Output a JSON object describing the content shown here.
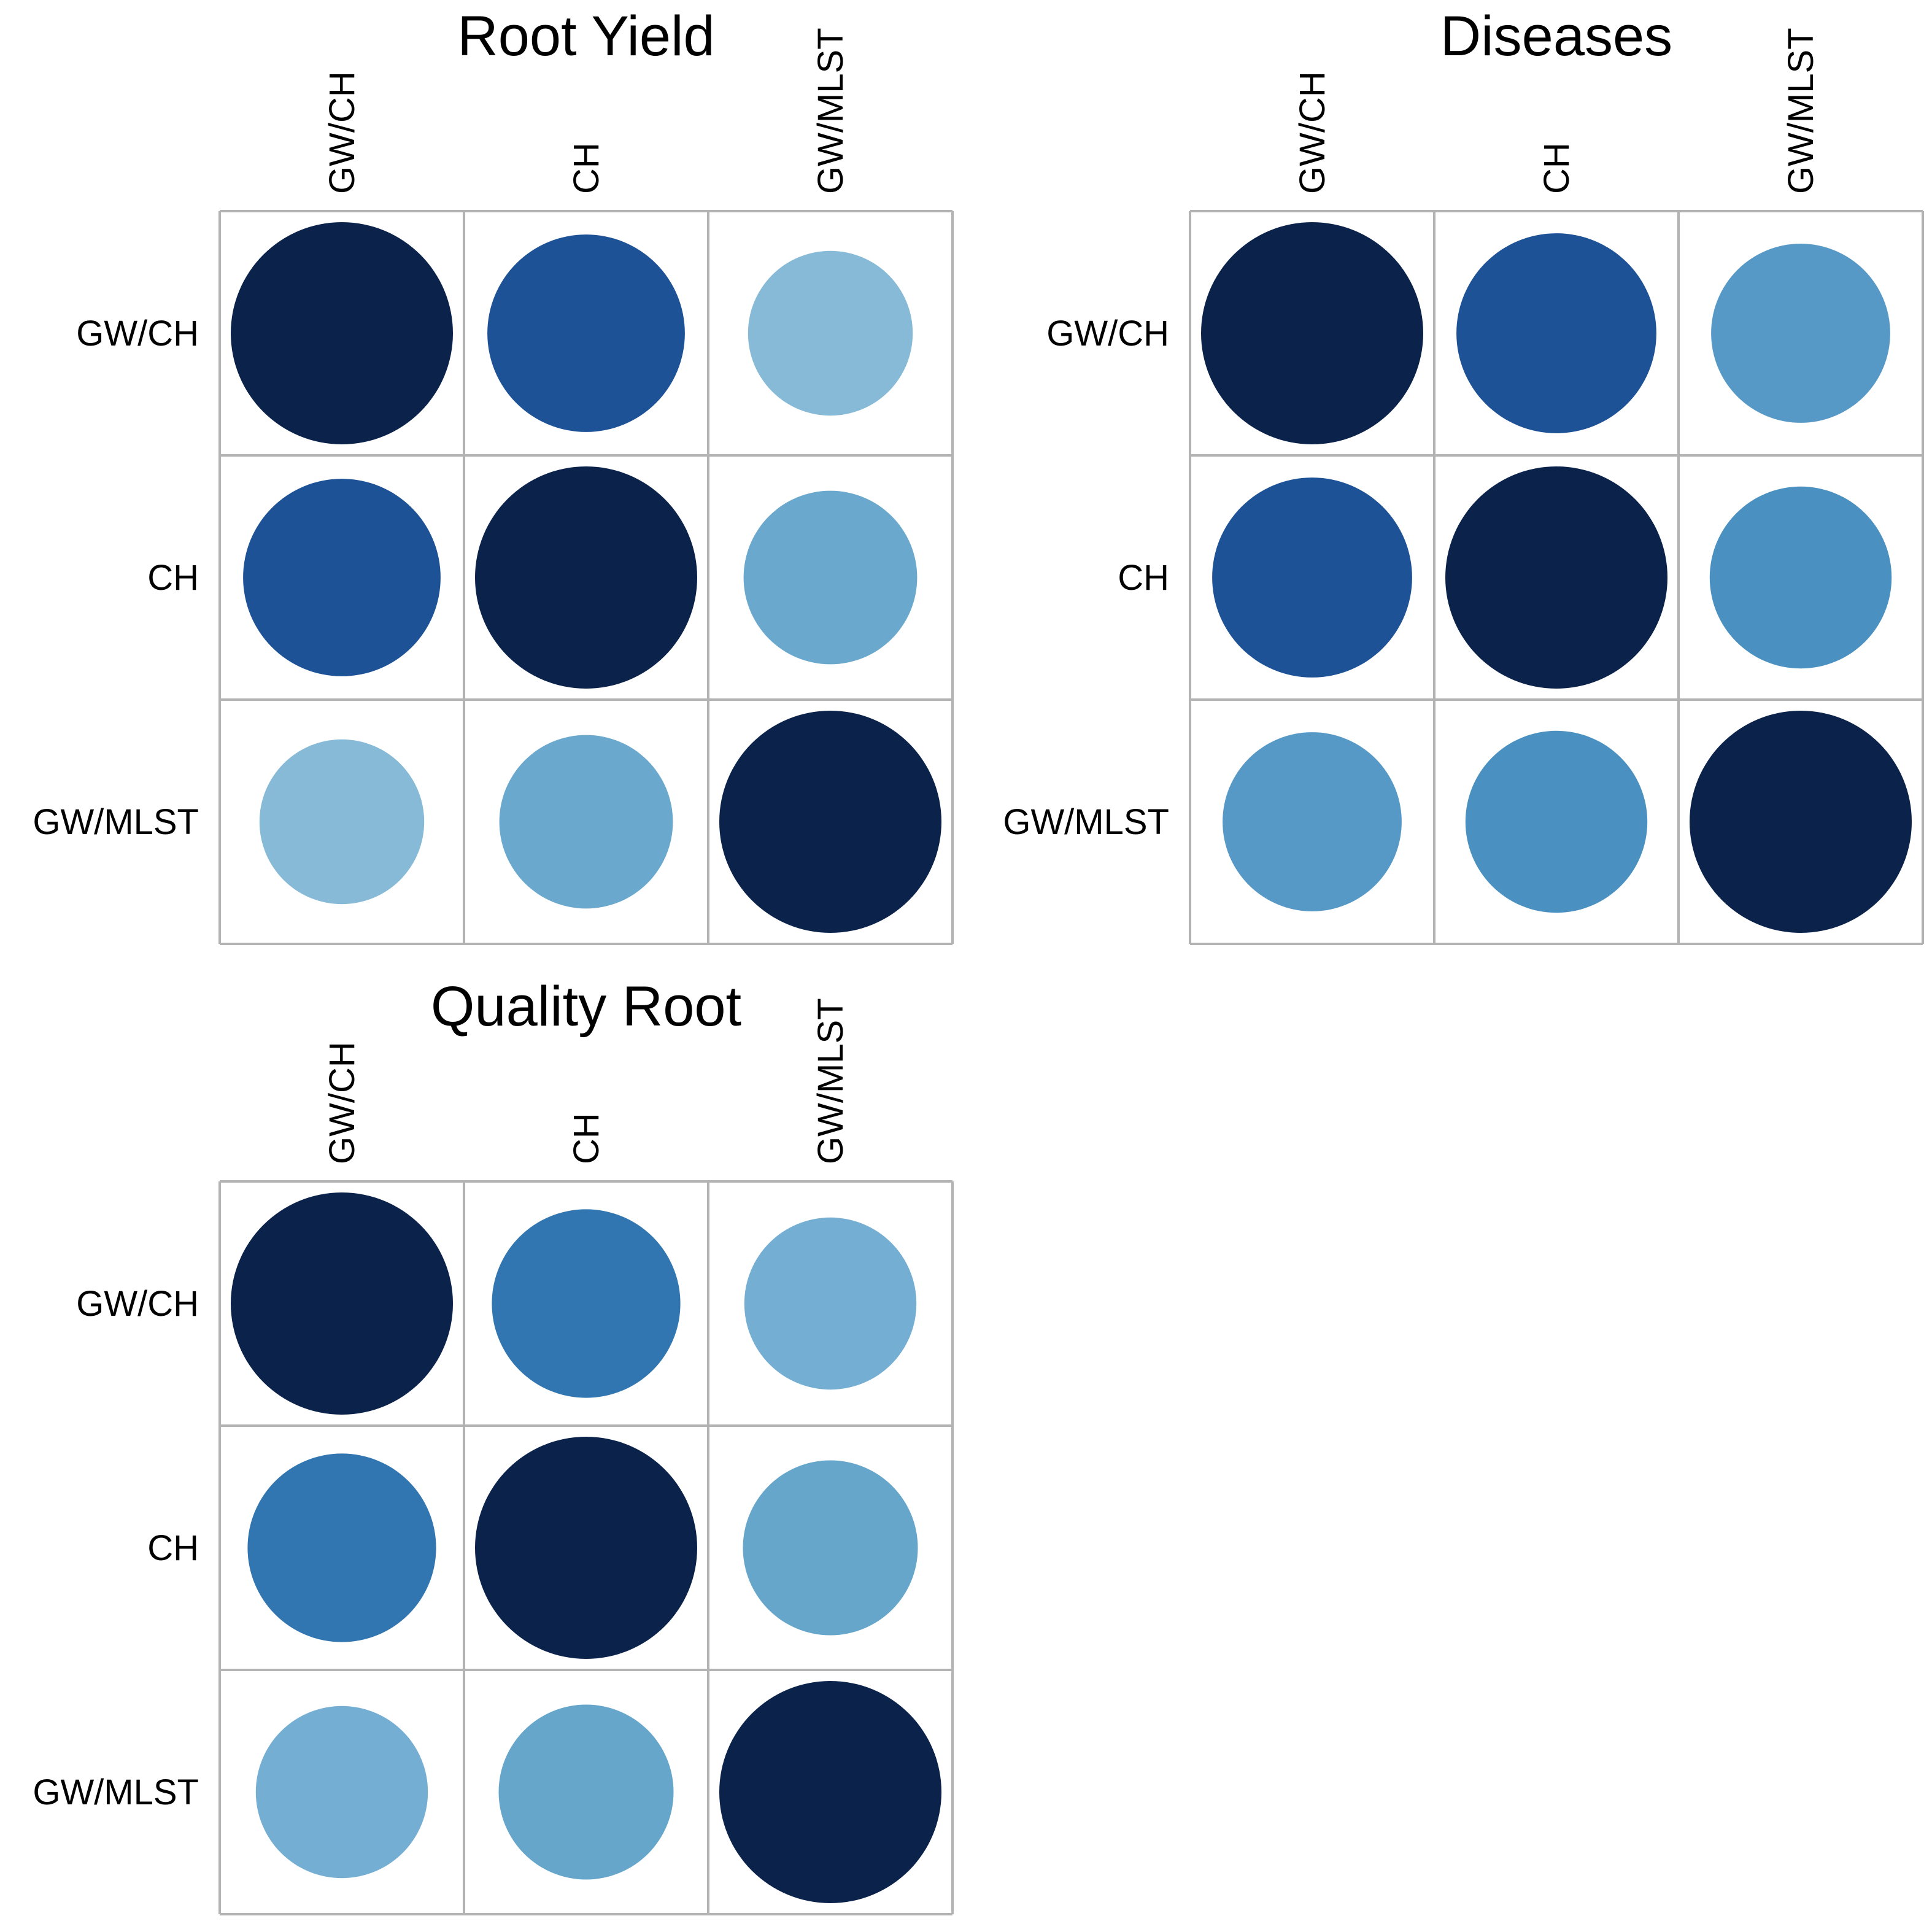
{
  "chart_data": [
    {
      "type": "heatmap",
      "title": "Root Yield",
      "labels": [
        "GW/CH",
        "CH",
        "GW/MLST"
      ],
      "values": [
        [
          1.0,
          0.79,
          0.55
        ],
        [
          0.79,
          1.0,
          0.61
        ],
        [
          0.55,
          0.61,
          1.0
        ]
      ],
      "colors": [
        [
          "#0b224b",
          "#1e5297",
          "#87bad7"
        ],
        [
          "#1e5297",
          "#0b224b",
          "#6aa8cd"
        ],
        [
          "#87bad7",
          "#6aa8cd",
          "#0b224b"
        ]
      ]
    },
    {
      "type": "heatmap",
      "title": "Diseases",
      "labels": [
        "GW/CH",
        "CH",
        "GW/MLST"
      ],
      "values": [
        [
          1.0,
          0.81,
          0.65
        ],
        [
          0.81,
          1.0,
          0.67
        ],
        [
          0.65,
          0.67,
          1.0
        ]
      ],
      "colors": [
        [
          "#0b224b",
          "#1e5297",
          "#5799c6"
        ],
        [
          "#1e5297",
          "#0b224b",
          "#4a90c0"
        ],
        [
          "#5799c6",
          "#4a90c0",
          "#0b224b"
        ]
      ]
    },
    {
      "type": "heatmap",
      "title": "Quality Root",
      "labels": [
        "GW/CH",
        "CH",
        "GW/MLST"
      ],
      "values": [
        [
          1.0,
          0.72,
          0.6
        ],
        [
          0.72,
          1.0,
          0.62
        ],
        [
          0.6,
          0.62,
          1.0
        ]
      ],
      "colors": [
        [
          "#0b224b",
          "#3176b0",
          "#75aed3"
        ],
        [
          "#3176b0",
          "#0b224b",
          "#67a6cb"
        ],
        [
          "#75aed3",
          "#67a6cb",
          "#0b224b"
        ]
      ]
    }
  ],
  "grid_color": "#b3b3b3"
}
